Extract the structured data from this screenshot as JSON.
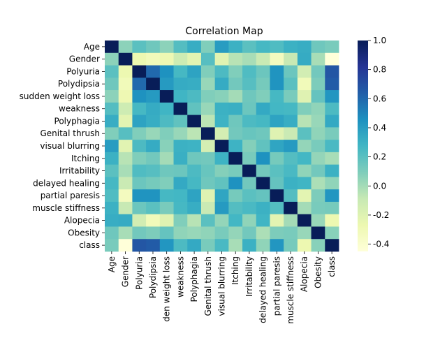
{
  "chart_data": {
    "type": "heatmap",
    "title": "Correlation Map",
    "xlabel": "",
    "ylabel": "",
    "x_tick_labels": [
      "Age",
      "Gender",
      "Polyuria",
      "Polydipsia",
      "den weight loss",
      "weakness",
      "Polyphagia",
      "Genital thrush",
      "visual blurring",
      "Itching",
      "Irritability",
      "delayed healing",
      "partial paresis",
      "muscle stiffness",
      "Alopecia",
      "Obesity",
      "class"
    ],
    "y_tick_labels": [
      "Age",
      "Gender",
      "Polyuria",
      "Polydipsia",
      "sudden weight loss",
      "weakness",
      "Polyphagia",
      "Genital thrush",
      "visual blurring",
      "Itching",
      "Irritability",
      "delayed healing",
      "partial paresis",
      "muscle stiffness",
      "Alopecia",
      "Obesity",
      "class"
    ],
    "values": [
      [
        1.0,
        0.06,
        0.2,
        0.14,
        0.06,
        0.22,
        0.32,
        0.09,
        0.4,
        0.3,
        0.2,
        0.26,
        0.23,
        0.3,
        0.32,
        0.14,
        0.11
      ],
      [
        0.06,
        1.0,
        -0.27,
        -0.31,
        -0.28,
        -0.12,
        -0.22,
        0.21,
        -0.21,
        -0.05,
        -0.01,
        -0.1,
        -0.33,
        -0.09,
        0.33,
        -0.01,
        -0.45
      ],
      [
        0.2,
        -0.27,
        1.0,
        0.6,
        0.45,
        0.26,
        0.37,
        0.09,
        0.24,
        0.09,
        0.23,
        0.15,
        0.44,
        0.15,
        -0.14,
        0.13,
        0.67
      ],
      [
        0.14,
        -0.31,
        0.6,
        1.0,
        0.41,
        0.33,
        0.32,
        0.03,
        0.33,
        0.13,
        0.21,
        0.12,
        0.44,
        0.2,
        -0.31,
        0.1,
        0.65
      ],
      [
        0.06,
        -0.28,
        0.45,
        0.41,
        1.0,
        0.28,
        0.24,
        0.09,
        0.07,
        -0.0,
        0.14,
        0.09,
        0.26,
        0.11,
        -0.2,
        0.17,
        0.43
      ],
      [
        0.22,
        -0.12,
        0.26,
        0.33,
        0.28,
        1.0,
        0.18,
        0.03,
        0.3,
        0.31,
        0.15,
        0.34,
        0.27,
        0.26,
        0.09,
        0.05,
        0.24
      ],
      [
        0.32,
        -0.22,
        0.37,
        0.32,
        0.24,
        0.18,
        1.0,
        -0.06,
        0.29,
        0.14,
        0.24,
        0.26,
        0.37,
        0.32,
        -0.05,
        0.03,
        0.34
      ],
      [
        0.09,
        0.21,
        0.09,
        0.03,
        0.09,
        0.03,
        -0.06,
        1.0,
        -0.15,
        0.13,
        0.16,
        0.14,
        -0.2,
        -0.1,
        0.2,
        0.05,
        0.11
      ],
      [
        0.4,
        -0.21,
        0.24,
        0.33,
        0.07,
        0.3,
        0.29,
        -0.15,
        1.0,
        0.29,
        0.08,
        0.18,
        0.36,
        0.41,
        0.04,
        0.11,
        0.25
      ],
      [
        0.3,
        -0.05,
        0.09,
        0.13,
        -0.0,
        0.31,
        0.14,
        0.13,
        0.29,
        1.0,
        0.11,
        0.45,
        0.12,
        0.22,
        0.27,
        0.04,
        -0.01
      ],
      [
        0.2,
        -0.01,
        0.23,
        0.21,
        0.14,
        0.15,
        0.24,
        0.16,
        0.08,
        0.11,
        1.0,
        0.13,
        0.2,
        0.25,
        0.05,
        0.13,
        0.3
      ],
      [
        0.26,
        -0.1,
        0.15,
        0.12,
        0.09,
        0.34,
        0.26,
        0.14,
        0.18,
        0.45,
        0.13,
        1.0,
        0.17,
        0.3,
        0.28,
        -0.02,
        0.05
      ],
      [
        0.23,
        -0.33,
        0.44,
        0.44,
        0.26,
        0.27,
        0.37,
        -0.2,
        0.36,
        0.12,
        0.2,
        0.17,
        1.0,
        0.22,
        -0.22,
        0.1,
        0.43
      ],
      [
        0.3,
        -0.09,
        0.15,
        0.2,
        0.11,
        0.26,
        0.32,
        -0.1,
        0.41,
        0.22,
        0.25,
        0.3,
        0.22,
        1.0,
        0.0,
        0.11,
        0.12
      ],
      [
        0.32,
        0.33,
        -0.14,
        -0.31,
        -0.2,
        0.09,
        -0.05,
        0.2,
        0.04,
        0.27,
        0.05,
        0.28,
        -0.22,
        0.0,
        1.0,
        0.03,
        -0.27
      ],
      [
        0.14,
        -0.01,
        0.13,
        0.1,
        0.17,
        0.05,
        0.03,
        0.05,
        0.11,
        0.04,
        0.13,
        -0.02,
        0.1,
        0.11,
        0.03,
        1.0,
        0.07
      ],
      [
        0.11,
        -0.45,
        0.67,
        0.65,
        0.43,
        0.24,
        0.34,
        0.11,
        0.25,
        -0.01,
        0.3,
        0.05,
        0.43,
        0.12,
        -0.27,
        0.07,
        1.0
      ]
    ],
    "colorscale": "YlGnBu",
    "vmin": -0.45,
    "vmax": 1.0,
    "colorbar_ticks": [
      "-0.4",
      "-0.2",
      "0.0",
      "0.2",
      "0.4",
      "0.6",
      "0.8",
      "1.0"
    ],
    "colorbar_tick_values": [
      -0.4,
      -0.2,
      0.0,
      0.2,
      0.4,
      0.6,
      0.8,
      1.0
    ],
    "grid": false
  }
}
